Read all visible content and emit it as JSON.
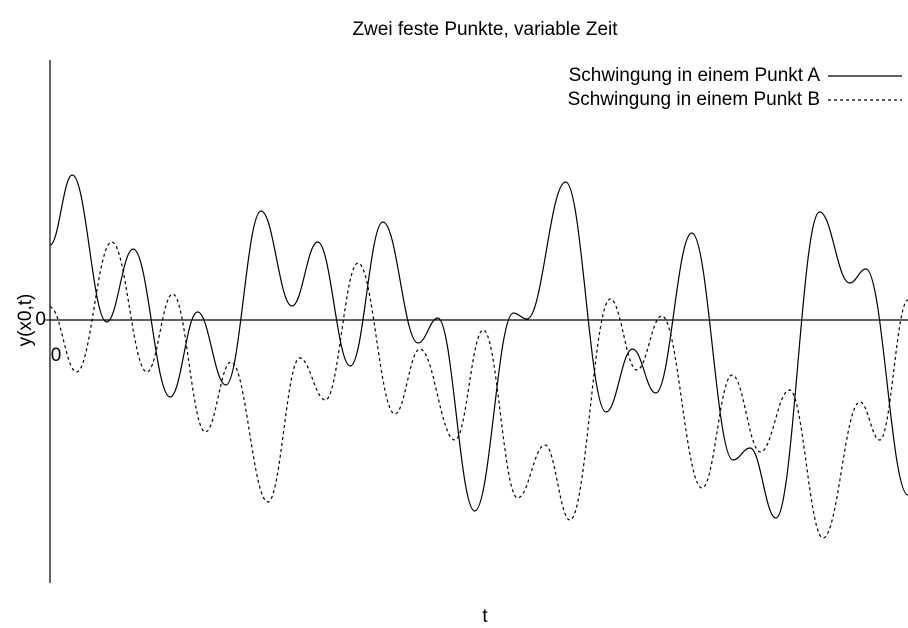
{
  "chart_data": {
    "type": "line",
    "title": "Zwei feste Punkte, variable Zeit",
    "xlabel": "t",
    "ylabel": "y(x0,t)",
    "xlim": [
      0,
      10
    ],
    "ylim": [
      -2.63,
      2.6
    ],
    "xticks": [
      0
    ],
    "yticks": [
      0
    ],
    "legend": "upper right",
    "series": [
      {
        "name": "Schwingung in einem Punkt A",
        "color": "#000000",
        "dash": "solid",
        "x": [
          0,
          0.26,
          0.66,
          0.97,
          1.4,
          1.72,
          2.05,
          2.46,
          2.82,
          3.12,
          3.5,
          3.88,
          4.29,
          4.52,
          4.95,
          5.4,
          5.56,
          6.01,
          6.48,
          6.79,
          7.06,
          7.48,
          7.96,
          8.16,
          8.46,
          8.97,
          9.32,
          9.51,
          10
        ],
        "values": [
          0.75,
          1.45,
          -0.02,
          0.71,
          -0.77,
          0.08,
          -0.65,
          1.09,
          0.14,
          0.78,
          -0.46,
          0.98,
          -0.23,
          0.02,
          -1.91,
          0.07,
          0.01,
          1.38,
          -0.92,
          -0.29,
          -0.73,
          0.87,
          -1.4,
          -1.28,
          -1.98,
          1.08,
          0.37,
          0.51,
          -1.75
        ]
      },
      {
        "name": "Schwingung in einem Punkt B",
        "color": "#000000",
        "dash": "dotted",
        "x": [
          0,
          0.31,
          0.72,
          1.13,
          1.43,
          1.81,
          2.11,
          2.54,
          2.91,
          3.21,
          3.59,
          4.02,
          4.31,
          4.72,
          5.05,
          5.45,
          5.77,
          6.06,
          6.53,
          6.84,
          7.13,
          7.6,
          7.95,
          8.28,
          8.62,
          9.01,
          9.44,
          9.67,
          10
        ],
        "values": [
          0.13,
          -0.52,
          0.78,
          -0.52,
          0.26,
          -1.12,
          -0.42,
          -1.82,
          -0.38,
          -0.8,
          0.57,
          -0.94,
          -0.29,
          -1.2,
          -0.1,
          -1.78,
          -1.25,
          -2.0,
          0.21,
          -0.5,
          0.04,
          -1.68,
          -0.55,
          -1.32,
          -0.7,
          -2.18,
          -0.82,
          -1.2,
          0.2
        ]
      }
    ]
  }
}
